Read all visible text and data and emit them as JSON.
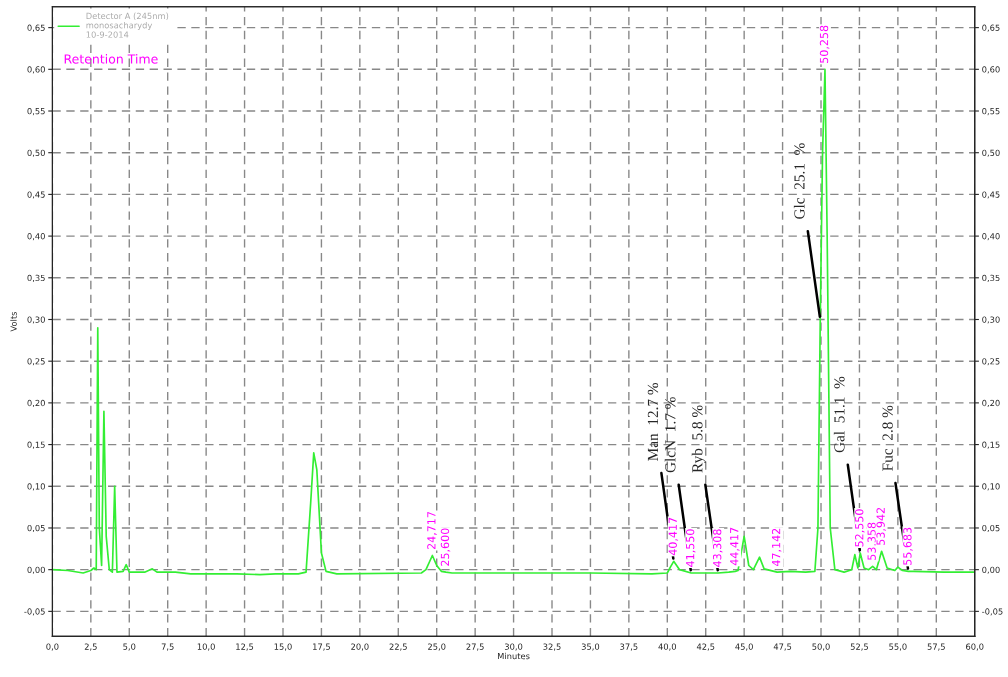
{
  "chart_data": {
    "type": "line",
    "xlabel": "Minutes",
    "ylabel": "Volts",
    "xlim": [
      0,
      60
    ],
    "xticks": [
      {
        "value": 0,
        "label": "0,0"
      },
      {
        "value": 2.5,
        "label": "2,5"
      },
      {
        "value": 5,
        "label": "5,0"
      },
      {
        "value": 7.5,
        "label": "7,5"
      },
      {
        "value": 10,
        "label": "10,0"
      },
      {
        "value": 12.5,
        "label": "12,5"
      },
      {
        "value": 15,
        "label": "15,0"
      },
      {
        "value": 17.5,
        "label": "17,5"
      },
      {
        "value": 20,
        "label": "20,0"
      },
      {
        "value": 22.5,
        "label": "22,5"
      },
      {
        "value": 25,
        "label": "25,0"
      },
      {
        "value": 27.5,
        "label": "27,5"
      },
      {
        "value": 30,
        "label": "30,0"
      },
      {
        "value": 32.5,
        "label": "32,5"
      },
      {
        "value": 35,
        "label": "35,0"
      },
      {
        "value": 37.5,
        "label": "37,5"
      },
      {
        "value": 40,
        "label": "40,0"
      },
      {
        "value": 42.5,
        "label": "42,5"
      },
      {
        "value": 45,
        "label": "45,0"
      },
      {
        "value": 47.5,
        "label": "47,5"
      },
      {
        "value": 50,
        "label": "50,0"
      },
      {
        "value": 52.5,
        "label": "52,5"
      },
      {
        "value": 55,
        "label": "55,0"
      },
      {
        "value": 57.5,
        "label": "57,5"
      },
      {
        "value": 60,
        "label": "60,0"
      }
    ],
    "ylim": [
      -0.08,
      0.675
    ],
    "yticks": [
      {
        "value": -0.05,
        "label": "-0,05"
      },
      {
        "value": 0,
        "label": "0,00"
      },
      {
        "value": 0.05,
        "label": "0,05"
      },
      {
        "value": 0.1,
        "label": "0,10"
      },
      {
        "value": 0.15,
        "label": "0,15"
      },
      {
        "value": 0.2,
        "label": "0,20"
      },
      {
        "value": 0.25,
        "label": "0,25"
      },
      {
        "value": 0.3,
        "label": "0,30"
      },
      {
        "value": 0.35,
        "label": "0,35"
      },
      {
        "value": 0.4,
        "label": "0,40"
      },
      {
        "value": 0.45,
        "label": "0,45"
      },
      {
        "value": 0.5,
        "label": "0,50"
      },
      {
        "value": 0.55,
        "label": "0,55"
      },
      {
        "value": 0.6,
        "label": "0,60"
      },
      {
        "value": 0.65,
        "label": "0,65"
      }
    ],
    "y2lim": [
      -0.08,
      0.675
    ],
    "y2ticks": [
      {
        "value": -0.05,
        "label": "-0,05"
      },
      {
        "value": 0,
        "label": "0,00"
      },
      {
        "value": 0.05,
        "label": "0,05"
      },
      {
        "value": 0.1,
        "label": "0,10"
      },
      {
        "value": 0.15,
        "label": "0,15"
      },
      {
        "value": 0.2,
        "label": "0,20"
      },
      {
        "value": 0.25,
        "label": "0,25"
      },
      {
        "value": 0.3,
        "label": "0,30"
      },
      {
        "value": 0.35,
        "label": "0,35"
      },
      {
        "value": 0.4,
        "label": "0,40"
      },
      {
        "value": 0.45,
        "label": "0,45"
      },
      {
        "value": 0.5,
        "label": "0,50"
      },
      {
        "value": 0.55,
        "label": "0,55"
      },
      {
        "value": 0.6,
        "label": "0,60"
      },
      {
        "value": 0.65,
        "label": "0,65"
      }
    ],
    "grid": true,
    "legend": "top left",
    "marker": "none",
    "line_style": "solid",
    "series": [
      {
        "name": "Detector A (245nm)\nmonosacharydy\n10-9-2014",
        "color": "#33ee33",
        "x": [
          0,
          1.0,
          2.0,
          2.5,
          2.7,
          2.85,
          2.95,
          3.05,
          3.2,
          3.35,
          3.5,
          3.7,
          3.9,
          4.05,
          4.2,
          4.6,
          4.8,
          5.0,
          6.0,
          6.5,
          6.8,
          8,
          9,
          10,
          12,
          13.5,
          14.5,
          16.0,
          16.5,
          16.8,
          17.0,
          17.2,
          17.5,
          17.8,
          18.5,
          24.0,
          24.3,
          24.717,
          25.0,
          25.3,
          25.6,
          26,
          30,
          35,
          39,
          40.0,
          40.2,
          40.417,
          40.8,
          41.55,
          43.308,
          44.0,
          44.417,
          44.6,
          45.0,
          45.3,
          45.6,
          46.0,
          46.3,
          47.142,
          48,
          49,
          49.6,
          49.8,
          49.95,
          50.1,
          50.258,
          50.4,
          50.6,
          50.9,
          51.5,
          52.0,
          52.2,
          52.4,
          52.55,
          52.8,
          53.1,
          53.358,
          53.6,
          53.942,
          54.3,
          54.8,
          55.0,
          55.3,
          55.683,
          56,
          58,
          60
        ],
        "values": [
          0.0,
          -0.001,
          -0.004,
          -0.001,
          0.002,
          0.0,
          0.29,
          0.05,
          0.005,
          0.19,
          0.04,
          0.0,
          -0.003,
          0.1,
          -0.003,
          -0.002,
          0.006,
          -0.003,
          -0.003,
          0.001,
          -0.003,
          -0.003,
          -0.005,
          -0.005,
          -0.005,
          -0.006,
          -0.005,
          -0.005,
          -0.003,
          0.08,
          0.14,
          0.12,
          0.02,
          -0.002,
          -0.005,
          -0.004,
          0.0,
          0.017,
          0.005,
          -0.002,
          -0.003,
          -0.004,
          -0.004,
          -0.004,
          -0.005,
          -0.004,
          0.003,
          0.01,
          0.0,
          -0.004,
          -0.004,
          -0.003,
          -0.002,
          -0.001,
          0.04,
          0.005,
          0.0,
          0.015,
          0.001,
          -0.003,
          -0.002,
          -0.003,
          -0.002,
          0.05,
          0.3,
          0.5,
          0.6,
          0.4,
          0.05,
          0.0,
          -0.003,
          0.0,
          0.018,
          0.002,
          0.02,
          0.002,
          0.0,
          0.004,
          0.0,
          0.022,
          0.002,
          -0.001,
          0.003,
          -0.001,
          -0.002,
          -0.002,
          -0.003,
          -0.003
        ]
      }
    ],
    "annotations": [
      "Retention Time",
      {
        "text": "24,717",
        "x": 24.717,
        "y": 0.017
      },
      {
        "text": "25,600",
        "x": 25.6,
        "y": -0.003
      },
      {
        "text": "40,417",
        "x": 40.417,
        "y": 0.01
      },
      {
        "text": "41,550",
        "x": 41.55,
        "y": -0.004
      },
      {
        "text": "43,308",
        "x": 43.308,
        "y": -0.004
      },
      {
        "text": "44,417",
        "x": 44.417,
        "y": -0.002
      },
      {
        "text": "47,142",
        "x": 47.142,
        "y": -0.003
      },
      {
        "text": "50,258",
        "x": 50.258,
        "y": 0.6
      },
      {
        "text": "52,550",
        "x": 52.55,
        "y": 0.02
      },
      {
        "text": "53,358",
        "x": 53.358,
        "y": 0.004
      },
      {
        "text": "53,942",
        "x": 53.942,
        "y": 0.022
      },
      {
        "text": "55,683",
        "x": 55.683,
        "y": -0.002
      },
      {
        "text": "Man  12.7 %",
        "x": 40.417,
        "y": 0.01
      },
      {
        "text": "GlcN  1.7 %",
        "x": 41.55,
        "y": -0.004
      },
      {
        "text": "Ryb  5.8 %",
        "x": 43.308,
        "y": -0.004
      },
      {
        "text": "Glc  25.1  %",
        "x": 49.95,
        "y": 0.3
      },
      {
        "text": "Gal  51.1  %",
        "x": 52.55,
        "y": 0.02
      },
      {
        "text": "Fuc  2.8 %",
        "x": 55.683,
        "y": -0.002
      }
    ]
  }
}
